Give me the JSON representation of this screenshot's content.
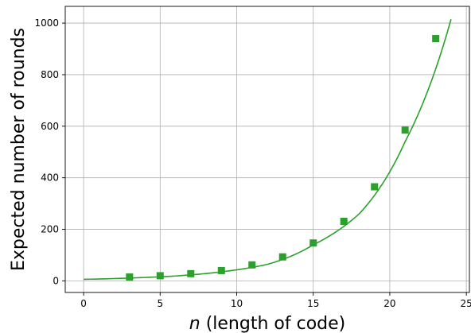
{
  "chart_data": {
    "type": "scatter",
    "xlabel_var": "n",
    "xlabel_rest": " (length of code)",
    "ylabel": "Expected number of rounds",
    "xlim": [
      -1.2,
      25.2
    ],
    "ylim": [
      -45,
      1065
    ],
    "x_ticks": [
      0,
      5,
      10,
      15,
      20,
      25
    ],
    "y_ticks": [
      0,
      200,
      400,
      600,
      800,
      1000
    ],
    "grid": true,
    "color": "#2ca02c",
    "series": [
      {
        "marker": "square",
        "points": [
          {
            "x": 3,
            "y": 15
          },
          {
            "x": 5,
            "y": 20
          },
          {
            "x": 7,
            "y": 28
          },
          {
            "x": 9,
            "y": 40
          },
          {
            "x": 11,
            "y": 62
          },
          {
            "x": 13,
            "y": 93
          },
          {
            "x": 15,
            "y": 147
          },
          {
            "x": 17,
            "y": 231
          },
          {
            "x": 19,
            "y": 365
          },
          {
            "x": 21,
            "y": 585
          },
          {
            "x": 23,
            "y": 940
          }
        ]
      },
      {
        "marker": "line",
        "fit": "exponential",
        "x_range": [
          0,
          24
        ],
        "points": [
          {
            "x": 0,
            "y": 6
          },
          {
            "x": 3,
            "y": 11
          },
          {
            "x": 6,
            "y": 19
          },
          {
            "x": 9,
            "y": 35
          },
          {
            "x": 12,
            "y": 64
          },
          {
            "x": 15,
            "y": 140
          },
          {
            "x": 18,
            "y": 260
          },
          {
            "x": 21,
            "y": 540
          },
          {
            "x": 24,
            "y": 1015
          }
        ]
      }
    ]
  }
}
